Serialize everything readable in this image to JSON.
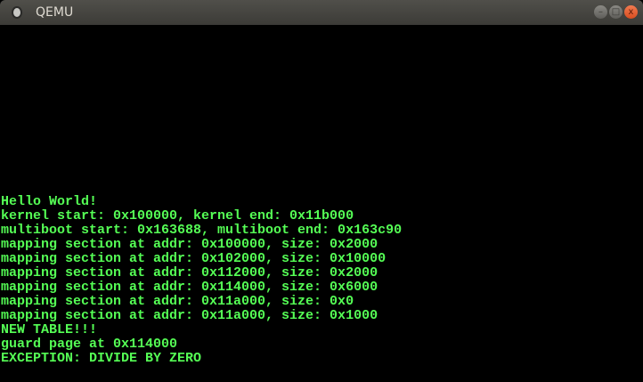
{
  "window": {
    "title": "QEMU",
    "minimize_icon": "minimize-icon",
    "maximize_icon": "maximize-icon",
    "close_icon": "close-icon",
    "min_glyph": "–",
    "max_glyph": "□",
    "close_glyph": "x"
  },
  "console": {
    "text_color": "#55ff55",
    "lines": [
      "Hello World!",
      "kernel start: 0x100000, kernel end: 0x11b000",
      "multiboot start: 0x163688, multiboot end: 0x163c90",
      "mapping section at addr: 0x100000, size: 0x2000",
      "mapping section at addr: 0x102000, size: 0x10000",
      "mapping section at addr: 0x112000, size: 0x2000",
      "mapping section at addr: 0x114000, size: 0x6000",
      "mapping section at addr: 0x11a000, size: 0x0",
      "mapping section at addr: 0x11a000, size: 0x1000",
      "NEW TABLE!!!",
      "guard page at 0x114000",
      "EXCEPTION: DIVIDE BY ZERO"
    ]
  }
}
